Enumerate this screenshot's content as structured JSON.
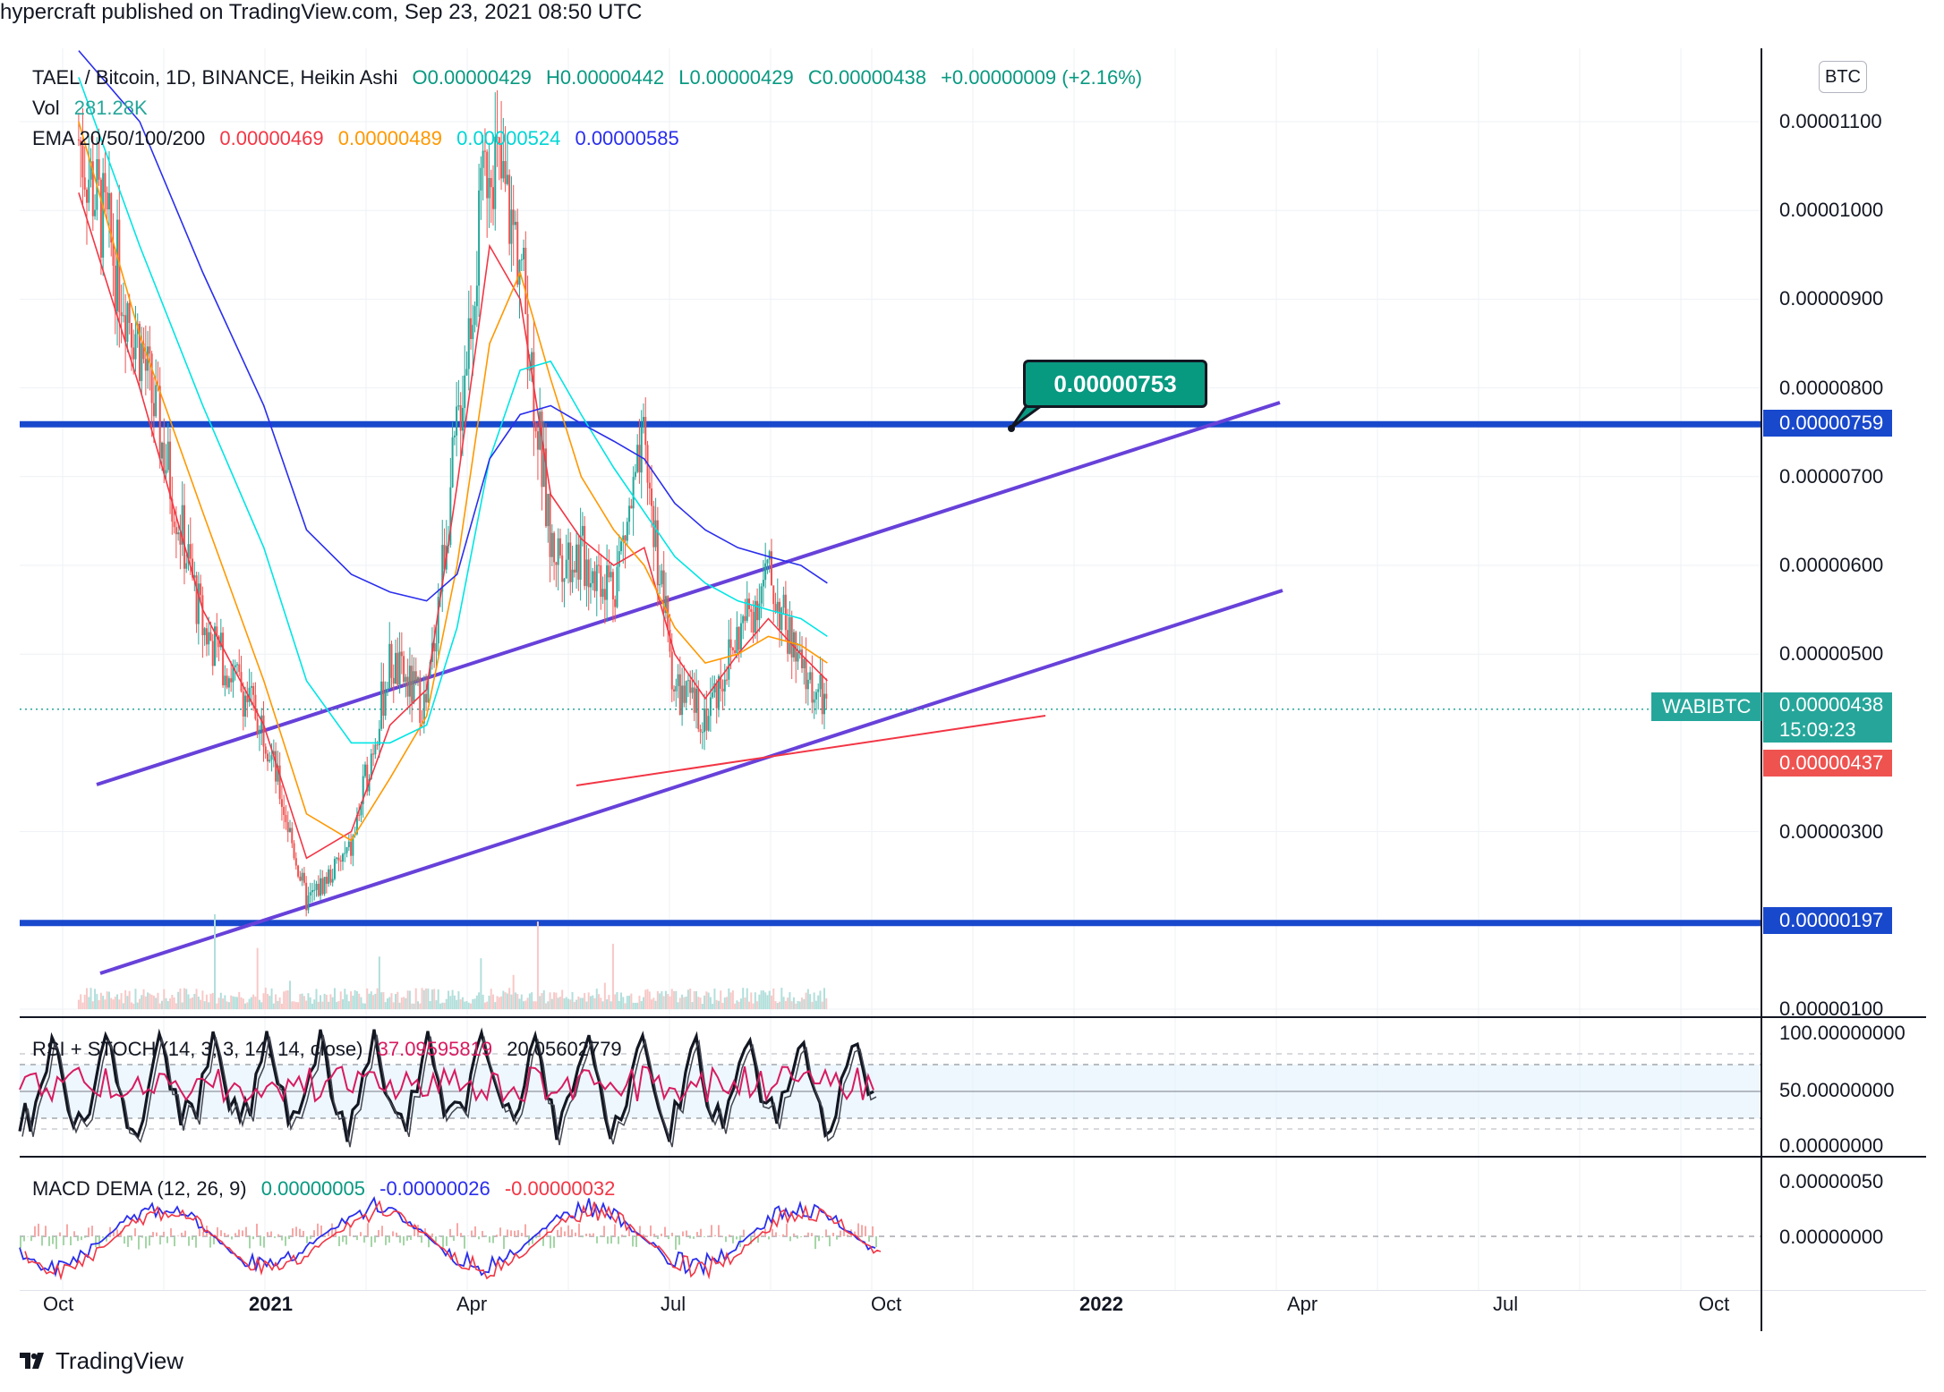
{
  "header": {
    "text": "hypercraft published on TradingView.com, Sep 23, 2021 08:50 UTC"
  },
  "main": {
    "symbol": "TAEL / Bitcoin, 1D, BINANCE, Heikin Ashi",
    "ohlc": {
      "o": "O0.00000429",
      "h": "H0.00000442",
      "l": "L0.00000429",
      "c": "C0.00000438",
      "chg": "+0.00000009 (+2.16%)"
    },
    "vol": {
      "label": "Vol",
      "value": "281.28K"
    },
    "ema": {
      "label": "EMA 20/50/100/200",
      "v20": "0.00000469",
      "v50": "0.00000489",
      "v100": "0.00000524",
      "v200": "0.00000585"
    },
    "currency_badge": "BTC",
    "callout": "0.00000753",
    "symbol_tag": "WABIBTC",
    "price_tags": {
      "last": "0.00000438",
      "countdown": "15:09:23",
      "prev": "0.00000437",
      "upper_line": "0.00000759",
      "lower_line": "0.00000197"
    }
  },
  "rsi": {
    "label": "RSI + STOCH (14, 3, 3, 14, 14, close)",
    "v1": "37.09595819",
    "v2": "20.05602779",
    "axis": [
      "100.00000000",
      "50.00000000",
      "0.00000000"
    ]
  },
  "macd": {
    "label": "MACD DEMA (12, 26, 9)",
    "v1": "0.00000005",
    "v2": "-0.00000026",
    "v3": "-0.00000032",
    "axis": [
      "0.00000050",
      "0.00000000"
    ]
  },
  "time_axis": [
    {
      "label": "Oct",
      "bold": false
    },
    {
      "label": "2021",
      "bold": true
    },
    {
      "label": "Apr",
      "bold": false
    },
    {
      "label": "Jul",
      "bold": false
    },
    {
      "label": "Oct",
      "bold": false
    },
    {
      "label": "2022",
      "bold": true
    },
    {
      "label": "Apr",
      "bold": false
    },
    {
      "label": "Jul",
      "bold": false
    },
    {
      "label": "Oct",
      "bold": false
    }
  ],
  "footer": {
    "logo_text": "TradingView"
  },
  "colors": {
    "up": "#26a69a",
    "down": "#ef5350",
    "ema20": "#f23645",
    "ema50": "#ff9800",
    "ema100": "#00e5e5",
    "ema200": "#2a2eec",
    "channel": "#6741d9",
    "level": "#1848cc"
  },
  "chart_data": {
    "type": "line",
    "title": "TAEL / Bitcoin, 1D, BINANCE, Heikin Ashi",
    "ylim": [
      1e-06,
      1.15e-05
    ],
    "y_ticks": [
      "0.00001100",
      "0.00001000",
      "0.00000900",
      "0.00000800",
      "0.00000700",
      "0.00000600",
      "0.00000500",
      "0.00000300",
      "0.00000100"
    ],
    "x": [
      "2020-09-20",
      "2020-10-20",
      "2020-11-20",
      "2020-12-20",
      "2021-01-10",
      "2021-02-01",
      "2021-02-20",
      "2021-03-10",
      "2021-03-25",
      "2021-04-10",
      "2021-04-25",
      "2021-05-10",
      "2021-05-25",
      "2021-06-10",
      "2021-06-25",
      "2021-07-10",
      "2021-07-25",
      "2021-08-10",
      "2021-08-25",
      "2021-09-10",
      "2021-09-23"
    ],
    "series": [
      {
        "name": "Price",
        "values": [
          1.08e-05,
          8.5e-06,
          5.3e-06,
          4.2e-06,
          2.2e-06,
          2.8e-06,
          4.9e-06,
          4.4e-06,
          7.5e-06,
          1.08e-05,
          9.5e-06,
          6.2e-06,
          6.1e-06,
          5.8e-06,
          7.3e-06,
          4.6e-06,
          4.3e-06,
          5.2e-06,
          5.9e-06,
          4.8e-06,
          4.4e-06
        ]
      },
      {
        "name": "EMA 20",
        "values": [
          1.02e-05,
          8e-06,
          5.5e-06,
          4.2e-06,
          2.7e-06,
          3e-06,
          4.2e-06,
          4.6e-06,
          6.9e-06,
          9.6e-06,
          9e-06,
          6.8e-06,
          6.3e-06,
          6e-06,
          6.2e-06,
          5e-06,
          4.5e-06,
          5e-06,
          5.4e-06,
          5e-06,
          4.7e-06
        ]
      },
      {
        "name": "EMA 50",
        "values": [
          1.1e-05,
          8.6e-06,
          6.6e-06,
          4.7e-06,
          3.2e-06,
          2.9e-06,
          3.6e-06,
          4.3e-06,
          6e-06,
          8.5e-06,
          9.3e-06,
          8.1e-06,
          7e-06,
          6.4e-06,
          6e-06,
          5.3e-06,
          4.9e-06,
          5e-06,
          5.2e-06,
          5.1e-06,
          4.9e-06
        ]
      },
      {
        "name": "EMA 100",
        "values": [
          1.15e-05,
          9.6e-06,
          7.8e-06,
          6.2e-06,
          4.7e-06,
          4e-06,
          4e-06,
          4.2e-06,
          5.3e-06,
          7.2e-06,
          8.2e-06,
          8.3e-06,
          7.7e-06,
          7.1e-06,
          6.6e-06,
          6.1e-06,
          5.8e-06,
          5.6e-06,
          5.5e-06,
          5.4e-06,
          5.2e-06
        ]
      },
      {
        "name": "EMA 200",
        "values": [
          1.2e-05,
          1.1e-05,
          9.3e-06,
          7.8e-06,
          6.4e-06,
          5.9e-06,
          5.7e-06,
          5.6e-06,
          5.9e-06,
          7.2e-06,
          7.7e-06,
          7.8e-06,
          7.6e-06,
          7.4e-06,
          7.2e-06,
          6.7e-06,
          6.4e-06,
          6.2e-06,
          6.1e-06,
          6e-06,
          5.8e-06
        ]
      }
    ],
    "levels": [
      7.59e-06,
      1.97e-06
    ],
    "legend": "top-left"
  }
}
